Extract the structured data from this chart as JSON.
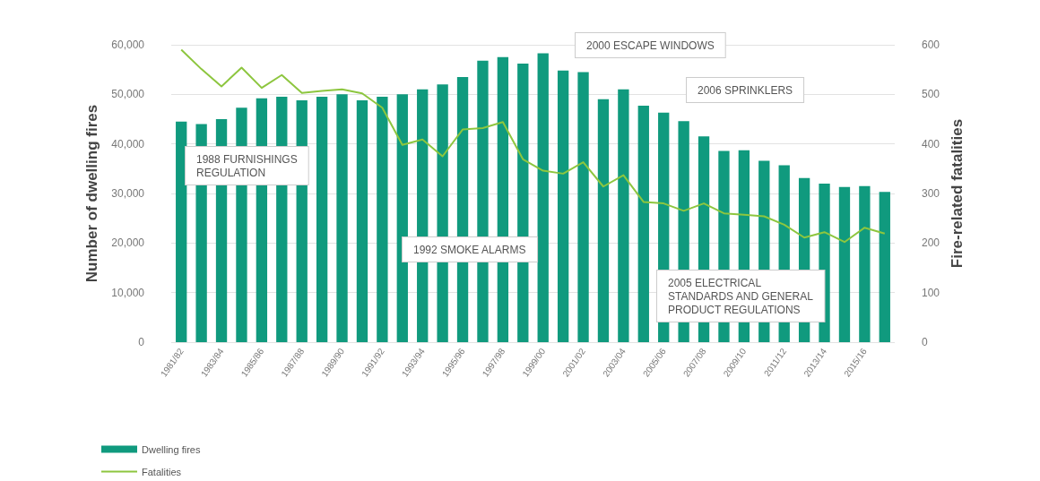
{
  "chart_data": {
    "type": "bar",
    "ylabel": "Number of dwelling fires",
    "y2label": "Fire-related fatalities",
    "categories": [
      "1981/82",
      null,
      "1983/84",
      null,
      "1985/86",
      null,
      "1987/88",
      null,
      "1989/90",
      null,
      "1991/92",
      null,
      "1993/94",
      null,
      "1995/96",
      null,
      "1997/98",
      null,
      "1999/00",
      null,
      "2001/02",
      null,
      "2003/04",
      null,
      "2005/06",
      null,
      "2007/08",
      null,
      "2009/10",
      null,
      "2011/12",
      null,
      "2013/14",
      null,
      "2015/16",
      null
    ],
    "series": [
      {
        "name": "Dwelling fires",
        "color": "#109a7e",
        "values": [
          44500,
          44000,
          45000,
          47300,
          49200,
          49500,
          48800,
          49500,
          50000,
          48800,
          49500,
          50000,
          51000,
          52000,
          53500,
          56800,
          57500,
          56200,
          58300,
          54800,
          54500,
          49000,
          51000,
          47700,
          46300,
          44600,
          41500,
          38600,
          38700,
          36600,
          35700,
          33100,
          32000,
          31300,
          31500,
          30300
        ]
      },
      {
        "name": "Fatalities",
        "type": "line",
        "axis": "y2",
        "color": "#8dc63f",
        "values": [
          590,
          551,
          516,
          554,
          513,
          539,
          503,
          507,
          510,
          502,
          473,
          398,
          409,
          375,
          429,
          432,
          444,
          369,
          346,
          340,
          363,
          314,
          337,
          283,
          280,
          265,
          280,
          260,
          257,
          254,
          237,
          211,
          222,
          202,
          231,
          219
        ]
      }
    ],
    "ylim": [
      0,
      60000
    ],
    "yticks": [
      0,
      {
        "value": 10000,
        "label": "10,000"
      },
      {
        "value": 20000,
        "label": "20,000"
      },
      {
        "value": 30000,
        "label": "30,000"
      },
      {
        "value": 40000,
        "label": "40,000"
      },
      {
        "value": 50000,
        "label": "50,000"
      },
      {
        "value": 60000,
        "label": "60,000"
      }
    ],
    "y2lim": [
      0,
      600
    ],
    "y2ticks": [
      0,
      100,
      200,
      300,
      400,
      500,
      600
    ],
    "grid": "y",
    "legend": "bottom left",
    "marker": "none",
    "line_style": "solid",
    "annotations": [
      "1988 FURNISHINGS\nREGULATION",
      "1992 SMOKE ALARMS",
      "2000 ESCAPE WINDOWS",
      "2006 SPRINKLERS",
      "2005 ELECTRICAL\nSTANDARDS AND GENERAL\nPRODUCT REGULATIONS"
    ]
  }
}
